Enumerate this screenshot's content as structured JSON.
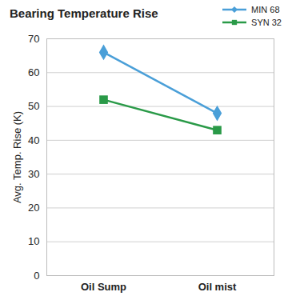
{
  "chart_data": {
    "type": "line",
    "title": "Bearing Temperature Rise",
    "y_label": "Avg. Temp. Rise (K)",
    "categories": [
      "Oil Sump",
      "Oil mist"
    ],
    "series": [
      {
        "name": "MIN 68",
        "color": "#4a9fd8",
        "marker": "diamond",
        "values": [
          66,
          48
        ]
      },
      {
        "name": "SYN 32",
        "color": "#2a9a48",
        "marker": "square",
        "values": [
          52,
          43
        ]
      }
    ],
    "ylim": [
      0,
      70
    ],
    "yticks": [
      0,
      10,
      20,
      30,
      40,
      50,
      60,
      70
    ],
    "grid": true,
    "legend": "upper right"
  }
}
